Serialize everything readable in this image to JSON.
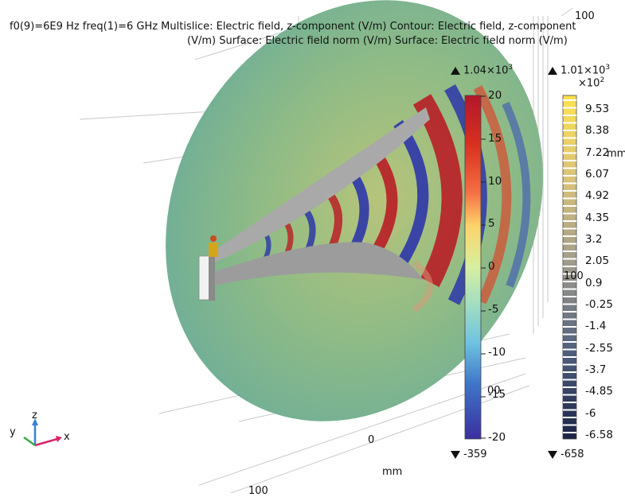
{
  "title": {
    "line1": "f0(9)=6E9 Hz freq(1)=6 GHz Multislice: Electric field, z-component (V/m)   Contour: Electric field, z-component",
    "line2": "(V/m)   Surface: Electric field norm (V/m)   Surface: Electric field norm (V/m)"
  },
  "colorbar_main": {
    "max_label": "1.04×10",
    "max_exp": "3",
    "min_label": "-359",
    "ticks": [
      "20",
      "15",
      "10",
      "5",
      "0",
      "-5",
      "-10",
      "-15",
      "-20"
    ],
    "colors": [
      "#b2182b",
      "#d73027",
      "#f46d43",
      "#fdae61",
      "#fee08b",
      "#d9ef8b",
      "#a6d96a",
      "#66c2a5",
      "#3288bd",
      "#2c4aa0",
      "#3a2f9e"
    ]
  },
  "colorbar_contour": {
    "max_label": "1.01×10",
    "max_exp": "3",
    "scale_label": "×10",
    "scale_exp": "2",
    "min_label": "-658",
    "ticks": [
      "9.53",
      "8.38",
      "7.22",
      "6.07",
      "4.92",
      "4.35",
      "3.2",
      "2.05",
      "0.9",
      "-0.25",
      "-1.4",
      "-2.55",
      "-3.7",
      "-4.85",
      "-6",
      "-6.58"
    ]
  },
  "axis_labels": {
    "top_100": "100",
    "mm_right": "mm",
    "right_100": "100",
    "bottom_00": "00",
    "zero": "0",
    "mm_bottom": "mm",
    "bottom_100": "100"
  },
  "triad": {
    "x": "x",
    "y": "y",
    "z": "z"
  },
  "colors": {
    "disk": "#7fb69a",
    "horn": "#a9a9a9",
    "red": "#b81e26",
    "blue": "#2d36a8"
  }
}
